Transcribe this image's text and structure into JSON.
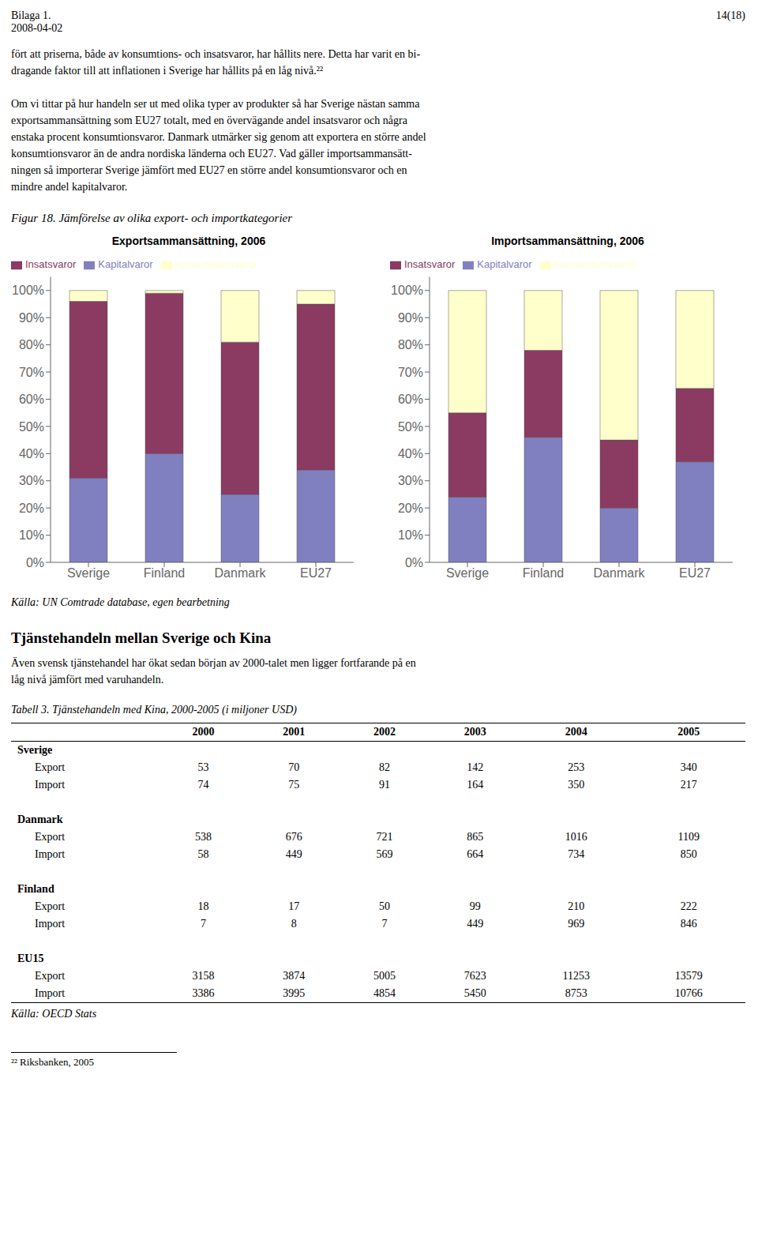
{
  "header_left": [
    "Bilaga 1.",
    "2008-04-02"
  ],
  "header_right": "14(18)",
  "body_text": [
    [
      "fört att priserna, både av konsumtions- och insatsvaror, har hållits nere. Detta har varit en bi-",
      "dragande faktor till att inflationen i Sverige har hållits på en låg nivå.²²"
    ],
    [
      "Om vi tittar på hur handeln ser ut med olika typer av produkter så har Sverige nästan samma",
      "exportsammansättning som EU27 totalt, med en övervägande andel insatsvaror och några",
      "enstaka procent konsumtionsvaror. Danmark utmärker sig genom att exportera en större andel",
      "konsumtionsvaror än de andra nordiska länderna och EU27. Vad gäller importsammansätt-",
      "ningen så importerar Sverige jämfört med EU27 en större andel konsumtionsvaror och en",
      "mindre andel kapitalvaror."
    ]
  ],
  "figure_caption": "Figur 18. Jämförelse av olika export- och importkategorier",
  "chart_data": [
    {
      "type": "bar",
      "stacked": true,
      "title": "Exportsammansättning, 2006",
      "categories": [
        "Sverige",
        "Finland",
        "Danmark",
        "EU27"
      ],
      "series": [
        {
          "name": "Kapitalvaror",
          "color": "#8080c0",
          "values": [
            31,
            40,
            25,
            34
          ]
        },
        {
          "name": "Insatsvaror",
          "color": "#8b3a62",
          "values": [
            65,
            59,
            56,
            61
          ]
        },
        {
          "name": "Konsumtionsvaror",
          "color": "#ffffcc",
          "values": [
            4,
            1,
            19,
            5
          ]
        }
      ],
      "ylim": [
        0,
        105
      ],
      "yticks": [
        {
          "value": 0,
          "label": "0%"
        },
        {
          "value": 10,
          "label": "10%"
        },
        {
          "value": 20,
          "label": "20%"
        },
        {
          "value": 30,
          "label": "30%"
        },
        {
          "value": 40,
          "label": "40%"
        },
        {
          "value": 50,
          "label": "50%"
        },
        {
          "value": 60,
          "label": "60%"
        },
        {
          "value": 70,
          "label": "70%"
        },
        {
          "value": 80,
          "label": "80%"
        },
        {
          "value": 90,
          "label": "90%"
        },
        {
          "value": 100,
          "label": "100%"
        }
      ],
      "grid": false,
      "legend": "upper left"
    },
    {
      "type": "bar",
      "stacked": true,
      "title": "Importsammansättning, 2006",
      "categories": [
        "Sverige",
        "Finland",
        "Danmark",
        "EU27"
      ],
      "series": [
        {
          "name": "Kapitalvaror",
          "color": "#8080c0",
          "values": [
            24,
            46,
            20,
            37
          ]
        },
        {
          "name": "Insatsvaror",
          "color": "#8b3a62",
          "values": [
            31,
            32,
            25,
            27
          ]
        },
        {
          "name": "Konsumtionsvaror",
          "color": "#ffffcc",
          "values": [
            45,
            22,
            55,
            36
          ]
        }
      ],
      "ylim": [
        0,
        105
      ],
      "yticks": [
        {
          "value": 0,
          "label": "0%"
        },
        {
          "value": 10,
          "label": "10%"
        },
        {
          "value": 20,
          "label": "20%"
        },
        {
          "value": 30,
          "label": "30%"
        },
        {
          "value": 40,
          "label": "40%"
        },
        {
          "value": 50,
          "label": "50%"
        },
        {
          "value": 60,
          "label": "60%"
        },
        {
          "value": 70,
          "label": "70%"
        },
        {
          "value": 80,
          "label": "80%"
        },
        {
          "value": 90,
          "label": "90%"
        },
        {
          "value": 100,
          "label": "100%"
        }
      ],
      "grid": false,
      "legend": "upper left"
    }
  ],
  "source_text": "Källa: UN Comtrade database, egen bearbetning",
  "section_title": "Tjänstehandeln mellan Sverige och Kina",
  "section_body": [
    "Även svensk tjänstehandel har ökat sedan början av 2000-talet men ligger fortfarande på en",
    "låg nivå jämfört med varuhandeln."
  ],
  "table": {
    "caption": "Tabell 3. Tjänstehandeln med Kina, 2000-2005 (i miljoner USD)",
    "columns": [
      "2000",
      "2001",
      "2002",
      "2003",
      "2004",
      "2005"
    ],
    "groups": [
      {
        "name": "Sverige",
        "rows": [
          {
            "name": "Export",
            "values": [
              53,
              70,
              82,
              142,
              253,
              340
            ]
          },
          {
            "name": "Import",
            "values": [
              74,
              75,
              91,
              164,
              350,
              217
            ]
          }
        ]
      },
      {
        "name": "Danmark",
        "rows": [
          {
            "name": "Export",
            "values": [
              538,
              676,
              721,
              865,
              1016,
              1109
            ]
          },
          {
            "name": "Import",
            "values": [
              58,
              449,
              569,
              664,
              734,
              850
            ]
          }
        ]
      },
      {
        "name": "Finland",
        "rows": [
          {
            "name": "Export",
            "values": [
              18,
              17,
              50,
              99,
              210,
              222
            ]
          },
          {
            "name": "Import",
            "values": [
              7,
              8,
              7,
              449,
              969,
              846
            ]
          }
        ]
      },
      {
        "name": "EU15",
        "rows": [
          {
            "name": "Export",
            "values": [
              3158,
              3874,
              5005,
              7623,
              11253,
              13579
            ]
          },
          {
            "name": "Import",
            "values": [
              3386,
              3995,
              4854,
              5450,
              8753,
              10766
            ]
          }
        ]
      }
    ],
    "source": "Källa: OECD Stats"
  },
  "footnote": "²² Riksbanken, 2005"
}
